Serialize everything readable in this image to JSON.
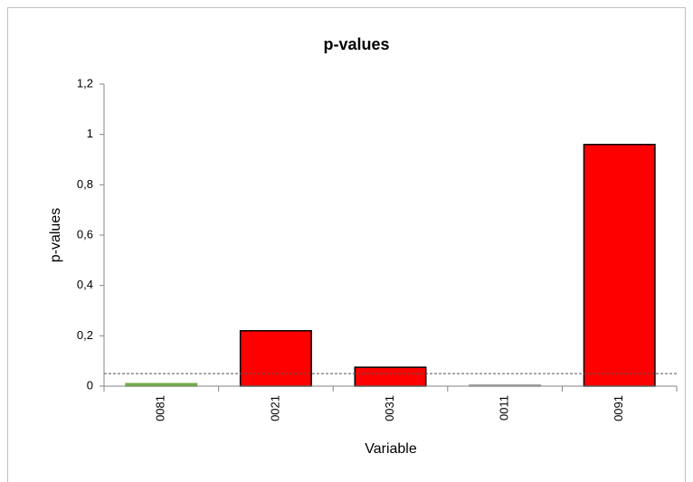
{
  "chart_data": {
    "type": "bar",
    "title": "p-values",
    "x_label": "Variable",
    "y_label": "p-values",
    "categories": [
      "0081",
      "0021",
      "0031",
      "0011",
      "0091"
    ],
    "values": [
      0.01,
      0.22,
      0.075,
      0.005,
      0.96
    ],
    "colors": [
      "#70ad47",
      "#ff0000",
      "#ff0000",
      "#a6a6a6",
      "#ff0000"
    ],
    "edge_colors": [
      "#70ad47",
      "#000000",
      "#000000",
      "#a6a6a6",
      "#000000"
    ],
    "threshold": 0.05,
    "ylim": [
      0,
      1.2
    ],
    "yticks": [
      0,
      {
        "value": 0.2,
        "label": "0,2"
      },
      {
        "value": 0.4,
        "label": "0,4"
      },
      {
        "value": 0.6,
        "label": "0,6"
      },
      {
        "value": 0.8,
        "label": "0,8"
      },
      1,
      {
        "value": 1.2,
        "label": "1,2"
      }
    ],
    "grid": false
  }
}
